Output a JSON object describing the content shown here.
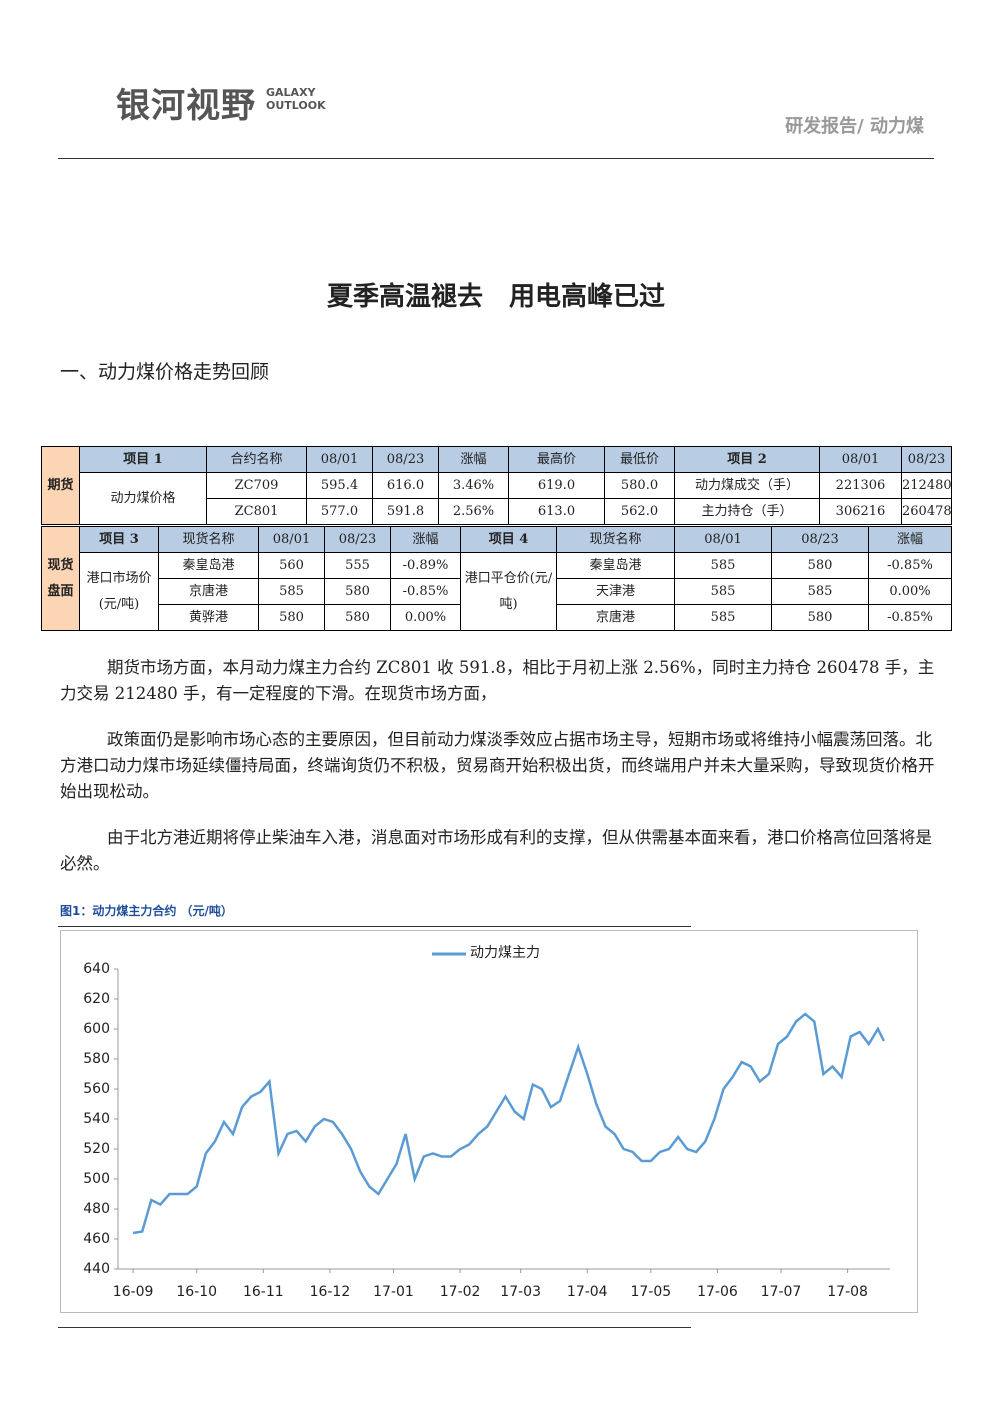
{
  "header": {
    "logo": "银河视野",
    "logo_en_1": "GALAXY",
    "logo_en_2": "OUTLOOK",
    "category": "研发报告/ 动力煤"
  },
  "title": "夏季高温褪去　用电高峰已过",
  "section": "一、动力煤价格走势回顾",
  "table": {
    "rows": [
      [
        "期货",
        "项目 1",
        "合约名称",
        "08/01",
        "08/23",
        "涨幅",
        "最高价",
        "最低价",
        "项目 2",
        "08/01",
        "08/23"
      ],
      [
        "动力煤价格",
        "ZC709",
        "595.4",
        "616.0",
        "3.46%",
        "619.0",
        "580.0",
        "动力煤成交（手）",
        "221306",
        "212480"
      ],
      [
        "ZC801",
        "577.0",
        "591.8",
        "2.56%",
        "613.0",
        "562.0",
        "主力持仓（手）",
        "306216",
        "260478"
      ],
      [
        "现货盘面",
        "项目 3",
        "现货名称",
        "08/01",
        "08/23",
        "涨幅",
        "项目 4",
        "现货名称",
        "08/01",
        "08/23",
        "涨幅"
      ],
      [
        "港口市场价(元/吨)",
        "秦皇岛港",
        "560",
        "555",
        "-0.89%",
        "港口平仓价(元/吨)",
        "秦皇岛港",
        "585",
        "580",
        "-0.85%"
      ],
      [
        "京唐港",
        "585",
        "580",
        "-0.85%",
        "天津港",
        "585",
        "585",
        "0.00%"
      ],
      [
        "黄骅港",
        "580",
        "580",
        "0.00%",
        "京唐港",
        "585",
        "580",
        "-0.85%"
      ]
    ]
  },
  "paragraphs": [
    "期货市场方面，本月动力煤主力合约 ZC801 收 591.8，相比于月初上涨 2.56%，同时主力持仓 260478 手，主力交易 212480 手，有一定程度的下滑。在现货市场方面，",
    "政策面仍是影响市场心态的主要原因，但目前动力煤淡季效应占据市场主导，短期市场或将维持小幅震荡回落。北方港口动力煤市场延续僵持局面，终端询货仍不积极，贸易商开始积极出货，而终端用户并未大量采购，导致现货价格开始出现松动。",
    "由于北方港近期将停止柴油车入港，消息面对市场形成有利的支撑，但从供需基本面来看，港口价格高位回落将是必然。"
  ],
  "figure_caption": "图1：动力煤主力合约 （元/吨）",
  "chart_data": {
    "type": "line",
    "x": [
      0,
      3,
      6,
      9,
      12,
      15,
      18,
      21,
      24,
      27,
      30,
      33,
      36,
      39,
      42,
      45,
      48,
      51,
      54,
      57,
      60,
      63,
      66,
      69,
      72,
      75,
      78,
      81,
      84,
      87,
      90,
      93,
      96,
      99,
      102,
      105,
      108,
      111,
      114,
      117,
      120,
      123,
      126,
      129,
      132,
      135,
      138,
      141,
      144,
      147,
      150,
      153,
      156,
      159,
      162,
      165,
      168,
      171,
      174,
      177,
      180,
      183,
      186,
      189,
      192,
      195,
      198,
      201,
      204,
      207,
      210,
      213,
      216,
      219,
      222,
      225,
      228,
      231,
      234,
      237,
      240,
      243,
      246,
      248
    ],
    "series": [
      {
        "name": "动力煤主力",
        "color": "#5b9bd5",
        "values": [
          464,
          465,
          486,
          483,
          490,
          490,
          490,
          495,
          517,
          525,
          538,
          530,
          548,
          555,
          558,
          565,
          517,
          530,
          532,
          525,
          535,
          540,
          538,
          530,
          520,
          505,
          495,
          490,
          500,
          510,
          530,
          500,
          515,
          517,
          515,
          515,
          520,
          523,
          530,
          535,
          545,
          555,
          545,
          540,
          563,
          560,
          548,
          552,
          570,
          588,
          570,
          550,
          535,
          530,
          520,
          518,
          512,
          512,
          518,
          520,
          528,
          520,
          518,
          525,
          540,
          560,
          568,
          578,
          575,
          565,
          570,
          590,
          595,
          605,
          610,
          605,
          570,
          575,
          568,
          595,
          598,
          590,
          600,
          592
        ]
      }
    ],
    "xlim": [
      -5,
      250
    ],
    "xticks": [
      {
        "value": 0,
        "label": "16-09"
      },
      {
        "value": 21,
        "label": "16-10"
      },
      {
        "value": 43,
        "label": "16-11"
      },
      {
        "value": 65,
        "label": "16-12"
      },
      {
        "value": 86,
        "label": "17-01"
      },
      {
        "value": 108,
        "label": "17-02"
      },
      {
        "value": 128,
        "label": "17-03"
      },
      {
        "value": 150,
        "label": "17-04"
      },
      {
        "value": 171,
        "label": "17-05"
      },
      {
        "value": 193,
        "label": "17-06"
      },
      {
        "value": 214,
        "label": "17-07"
      },
      {
        "value": 236,
        "label": "17-08"
      }
    ],
    "ylim": [
      440,
      640
    ],
    "yticks": [
      440,
      460,
      480,
      500,
      520,
      540,
      560,
      580,
      600,
      620,
      640
    ],
    "legend": "top"
  }
}
